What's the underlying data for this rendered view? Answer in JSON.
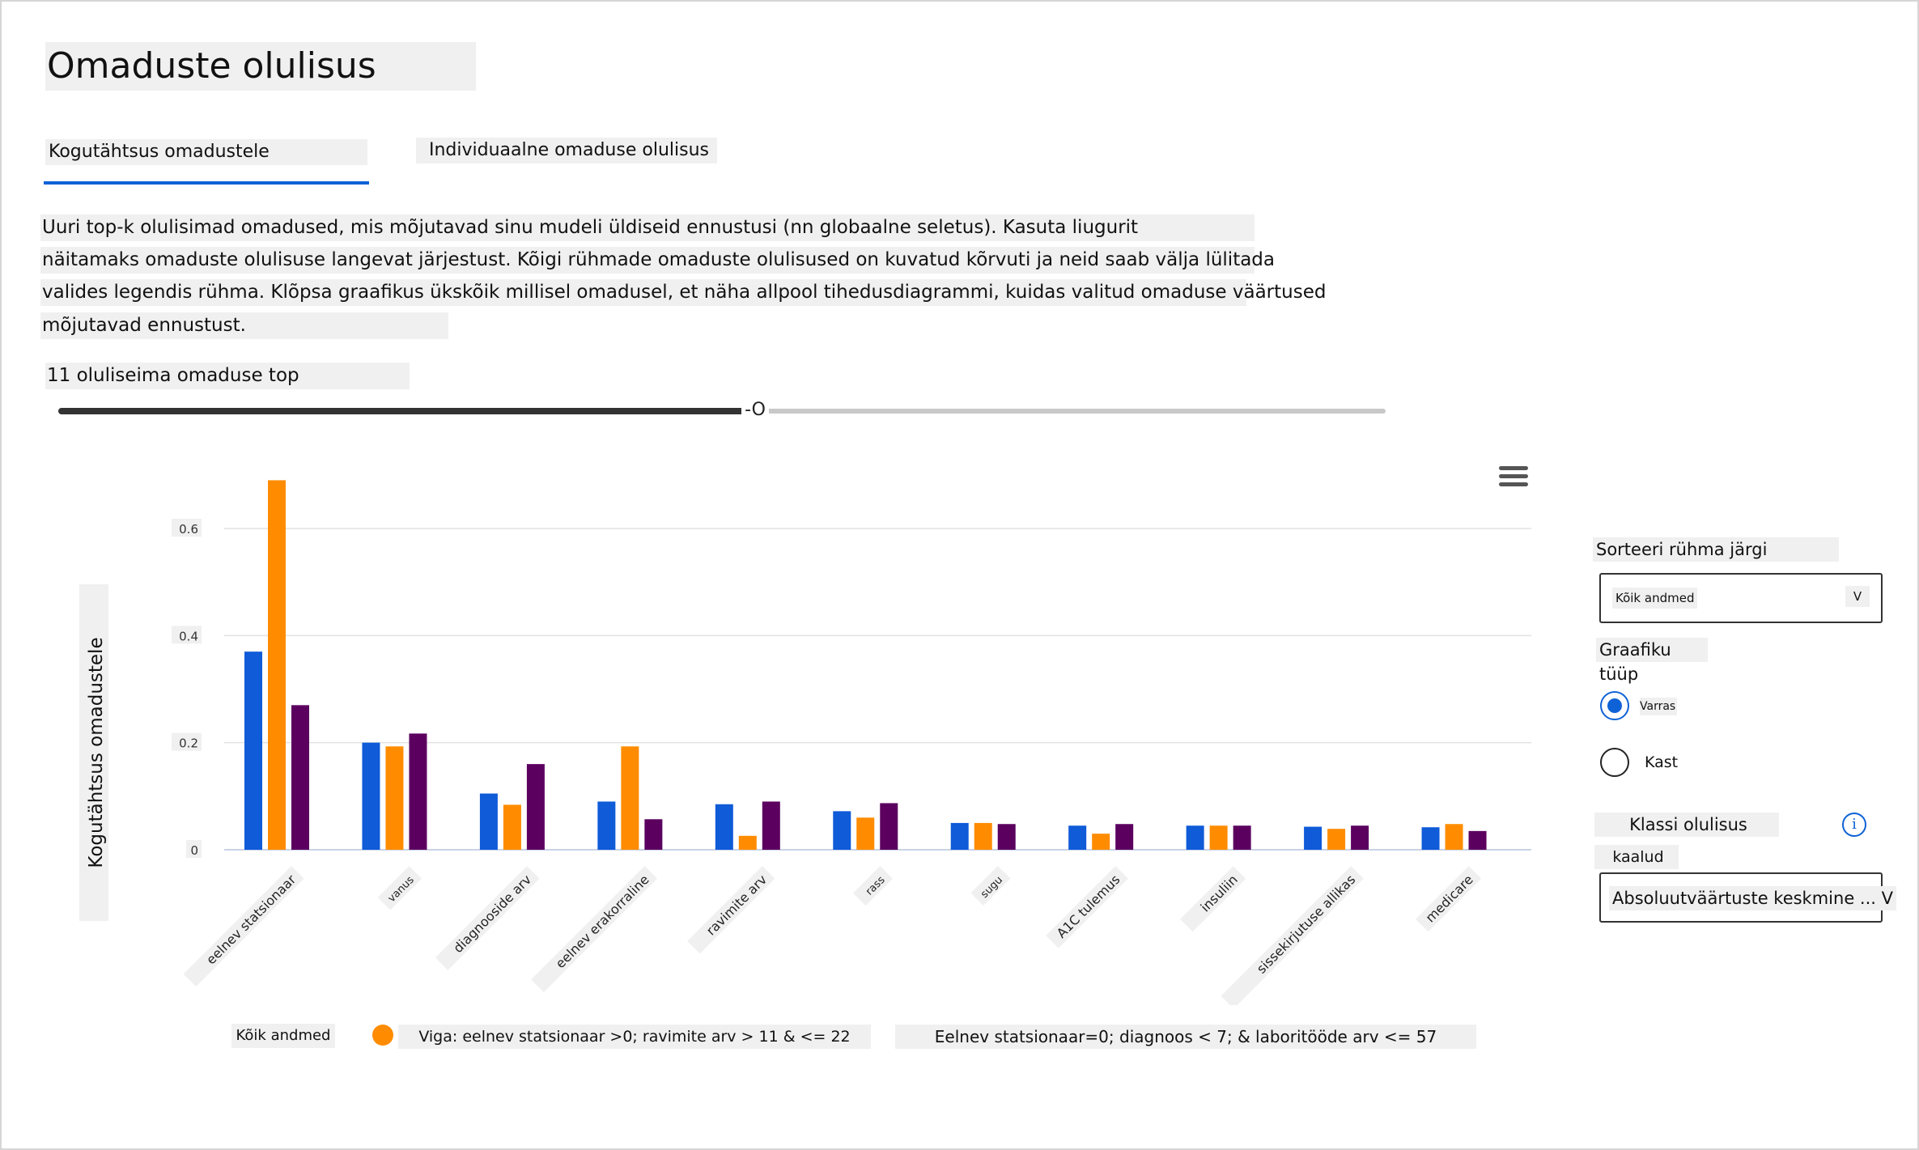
{
  "page": {
    "title": "Omaduste olulisus",
    "tabs": [
      {
        "label": "Kogutähtsus omadustele",
        "active": true
      },
      {
        "label": "Individuaalne omaduse olulisus",
        "active": false
      }
    ],
    "description_lines": [
      "Uuri top-k olulisimad omadused, mis mõjutavad sinu mudeli üldiseid ennustusi (nn globaalne seletus). Kasuta liugurit",
      "näitamaks omaduste olulisuse langevat järjestust. Kõigi rühmade omaduste olulisused on kuvatud kõrvuti ja neid saab välja lülitada",
      "valides legendis rühma. Klõpsa graafikus ükskõik millisel omadusel, et näha allpool tihedusdiagrammi, kuidas valitud omaduse väärtused",
      "mõjutavad ennustust."
    ],
    "slider": {
      "label": "11 oluliseima omaduse top",
      "thumb_text": "-O",
      "value": 11
    }
  },
  "side_panel": {
    "sort_label": "Sorteeri rühma järgi",
    "sort_value": "Kõik andmed",
    "sort_chevron": "V",
    "chart_type_label": "Graafiku tüüp",
    "chart_type_options": [
      {
        "label": "Varras",
        "selected": true
      },
      {
        "label": "Kast",
        "selected": false
      }
    ],
    "class_importance_label": "Klassi olulisus",
    "class_importance_label_2": "kaalud",
    "info_icon_text": "i",
    "aggregation_value": "Absoluutväärtuste keskmine ... V"
  },
  "legend": [
    {
      "label": "Kõik andmed",
      "color": "#0f5bd8"
    },
    {
      "label": "Viga: eelnev statsionaar >0; ravimite arv > 11 & <= 22",
      "color": "#ff8c00"
    },
    {
      "label": "Eelnev statsionaar=0; diagnoos < 7; & laboritööde arv <= 57",
      "color": "#5b005f"
    }
  ],
  "colors": {
    "accent": "#0f62d6",
    "series": [
      "#0f5bd8",
      "#ff8c00",
      "#5b005f"
    ],
    "grid": "#e2e2e2"
  },
  "chart_data": {
    "type": "bar",
    "title": "",
    "ylabel": "Kogutähtsus omadustele",
    "xlabel": "",
    "ylim": [
      0,
      0.7
    ],
    "yticks": [
      0,
      0.2,
      0.4,
      0.6
    ],
    "ytick_labels": [
      "0",
      "0.2",
      "0.4",
      "0.6"
    ],
    "grid": true,
    "legend_position": "bottom",
    "categories": [
      "eelnev statsionaar",
      "vanus",
      "diagnooside arv",
      "eelnev erakorraline",
      "ravimite arv",
      "rass",
      "sugu",
      "A1C tulemus",
      "insuliin",
      "sissekirjutuse allikas",
      "medicare"
    ],
    "series": [
      {
        "name": "Kõik andmed",
        "values": [
          0.37,
          0.2,
          0.105,
          0.09,
          0.085,
          0.072,
          0.05,
          0.045,
          0.045,
          0.043,
          0.042
        ]
      },
      {
        "name": "Viga: eelnev statsionaar >0; ravimite arv > 11 & <= 22",
        "values": [
          0.69,
          0.193,
          0.084,
          0.193,
          0.026,
          0.06,
          0.05,
          0.03,
          0.045,
          0.039,
          0.048
        ]
      },
      {
        "name": "Eelnev statsionaar=0; diagnoos < 7; & laboritööde arv <= 57",
        "values": [
          0.27,
          0.217,
          0.16,
          0.057,
          0.09,
          0.087,
          0.048,
          0.048,
          0.045,
          0.045,
          0.035
        ]
      }
    ]
  }
}
